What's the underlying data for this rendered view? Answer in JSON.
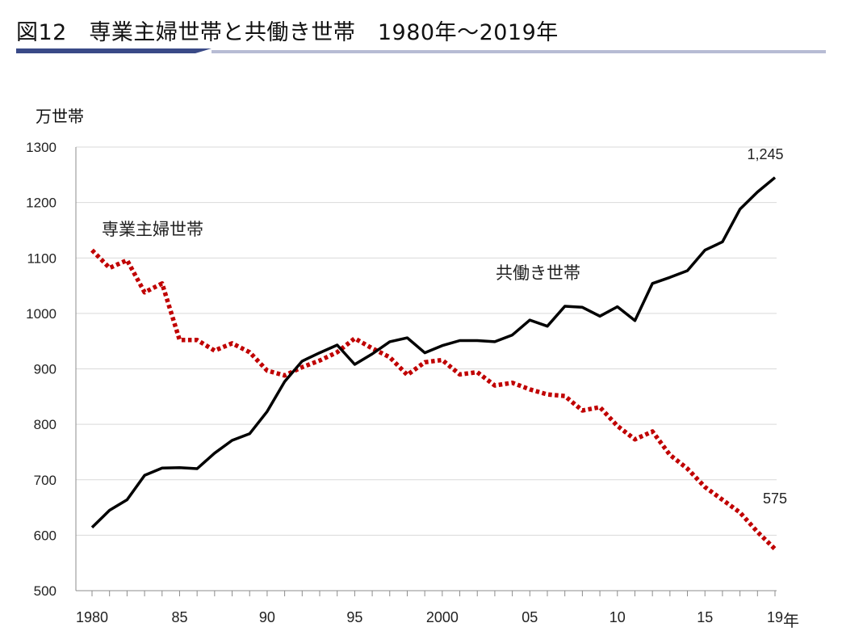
{
  "page": {
    "title": "図12　専業主婦世帯と共働き世帯　1980年～2019年"
  },
  "chart_data": {
    "type": "line",
    "title": "図12　専業主婦世帯と共働き世帯　1980年～2019年",
    "ylabel": "万世帯",
    "xlabel": "年",
    "ylim": [
      500,
      1300
    ],
    "yticks": [
      500,
      600,
      700,
      800,
      900,
      1000,
      1100,
      1200,
      1300
    ],
    "xlim": [
      1980,
      2019
    ],
    "xtick_values": [
      1980,
      1985,
      1990,
      1995,
      2000,
      2005,
      2010,
      2015,
      2019
    ],
    "xtick_labels": [
      "1980",
      "85",
      "90",
      "95",
      "2000",
      "05",
      "10",
      "15",
      "19"
    ],
    "x_unit_label": "年",
    "grid": "horizontal",
    "x": [
      1980,
      1981,
      1982,
      1983,
      1984,
      1985,
      1986,
      1987,
      1988,
      1989,
      1990,
      1991,
      1992,
      1993,
      1994,
      1995,
      1996,
      1997,
      1998,
      1999,
      2000,
      2001,
      2002,
      2003,
      2004,
      2005,
      2006,
      2007,
      2008,
      2009,
      2010,
      2011,
      2012,
      2013,
      2014,
      2015,
      2016,
      2017,
      2018,
      2019
    ],
    "series": [
      {
        "name": "専業主婦世帯",
        "color": "#c00000",
        "style": "dotted",
        "values": [
          1114,
          1082,
          1096,
          1038,
          1054,
          952,
          952,
          933,
          946,
          930,
          897,
          888,
          903,
          915,
          930,
          955,
          937,
          921,
          889,
          912,
          916,
          890,
          894,
          870,
          875,
          863,
          854,
          851,
          825,
          831,
          797,
          773,
          787,
          745,
          720,
          687,
          664,
          641,
          606,
          575
        ]
      },
      {
        "name": "共働き世帯",
        "color": "#000000",
        "style": "solid",
        "values": [
          614,
          645,
          664,
          708,
          721,
          722,
          720,
          748,
          771,
          783,
          823,
          877,
          914,
          929,
          943,
          908,
          927,
          949,
          956,
          929,
          942,
          951,
          951,
          949,
          961,
          988,
          977,
          1013,
          1011,
          995,
          1012,
          987,
          1054,
          1065,
          1077,
          1114,
          1129,
          1188,
          1219,
          1245
        ]
      }
    ],
    "annotations": [
      {
        "series": "共働き世帯",
        "x": 2019,
        "text": "1,245"
      },
      {
        "series": "専業主婦世帯",
        "x": 2019,
        "text": "575"
      }
    ]
  }
}
